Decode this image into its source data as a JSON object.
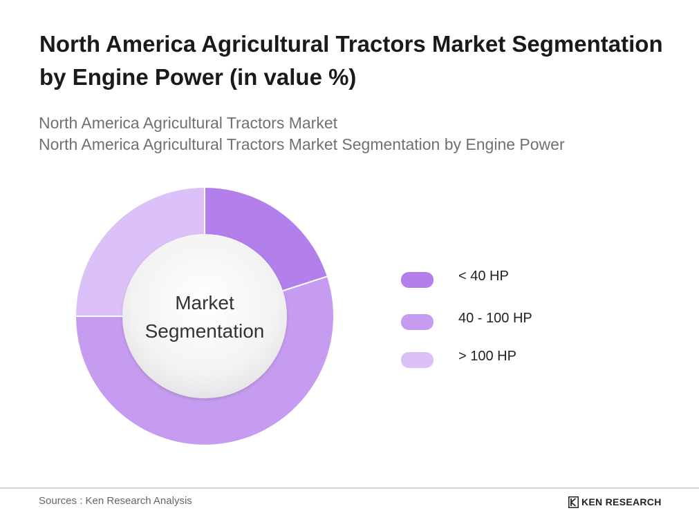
{
  "title": "North America Agricultural Tractors Market Segmentation by Engine Power (in value %)",
  "subtitle_lines": [
    "North America Agricultural Tractors Market",
    "North America Agricultural Tractors Market Segmentation by Engine Power"
  ],
  "chart_data": {
    "type": "pie",
    "variant": "donut",
    "center_label_lines": [
      "Market",
      "Segmentation"
    ],
    "categories": [
      "< 40 HP",
      "40 - 100 HP",
      "> 100 HP"
    ],
    "values": [
      20,
      55,
      25
    ],
    "colors": [
      "#b37feb",
      "#c69cf0",
      "#dbc1f7"
    ],
    "legend_position": "right"
  },
  "footer": {
    "sources": "Sources : Ken Research Analysis",
    "brand": "KEN RESEARCH"
  }
}
